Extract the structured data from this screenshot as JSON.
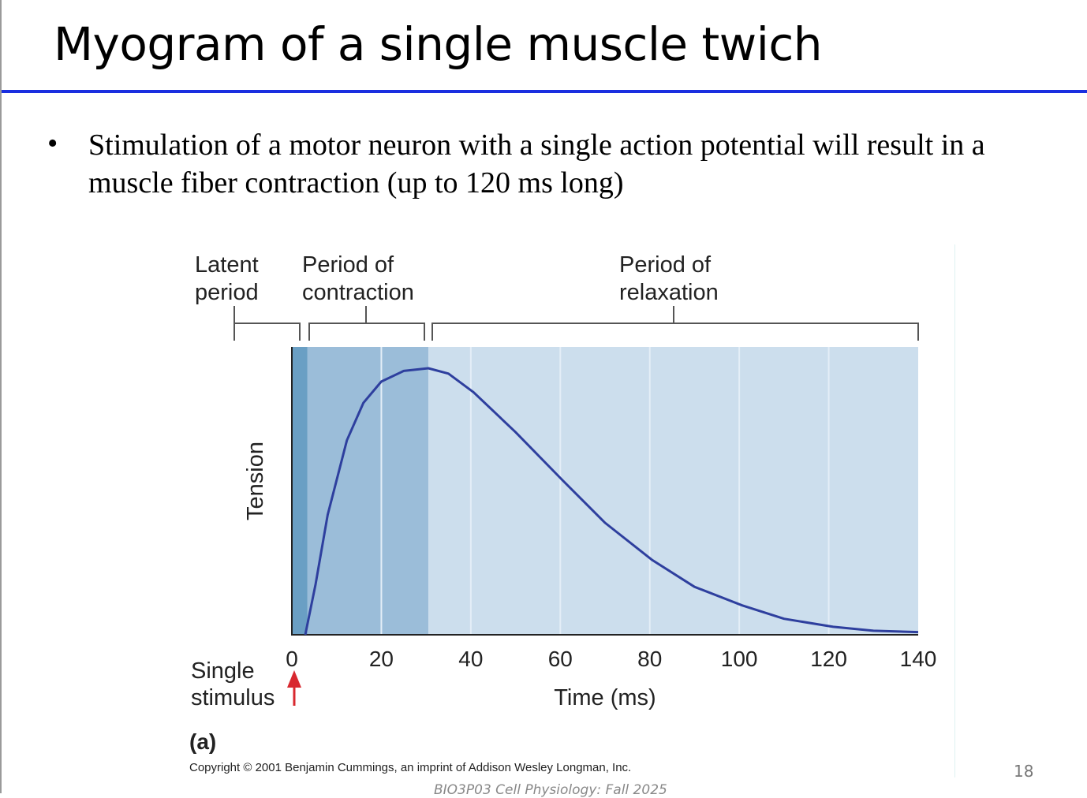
{
  "slide": {
    "title": "Myogram of a single muscle twich",
    "bullet": "Stimulation of a motor neuron with a single action potential will result in a muscle fiber contraction (up to 120 ms long)",
    "page_number": "18",
    "footer": "BIO3P03  Cell Physiology: Fall 2025"
  },
  "chart_data": {
    "type": "line",
    "title": "",
    "xlabel": "Time (ms)",
    "ylabel": "Tension",
    "xlim": [
      0,
      140
    ],
    "ylim": [
      0,
      1.08
    ],
    "x_ticks": [
      "0",
      "20",
      "40",
      "60",
      "80",
      "100",
      "120",
      "140"
    ],
    "phases": [
      {
        "name": "Latent period",
        "label1": "Latent",
        "label2": "period",
        "start": 0,
        "end": 3.5,
        "color": "#6a9fc4"
      },
      {
        "name": "Period of contraction",
        "label1": "Period of",
        "label2": "contraction",
        "start": 3.5,
        "end": 30.5,
        "color": "#9bbdd9"
      },
      {
        "name": "Period of relaxation",
        "label1": "Period of",
        "label2": "relaxation",
        "start": 30.5,
        "end": 140,
        "color": "#ccdeed"
      }
    ],
    "series": [
      {
        "name": "Tension",
        "color": "#2e3f9e",
        "x": [
          3,
          5.3,
          8,
          12.3,
          16,
          20,
          25,
          30.5,
          35,
          40.6,
          50,
          60.5,
          70,
          80.6,
          90,
          100.7,
          110,
          121,
          130,
          140
        ],
        "y": [
          0,
          0.19,
          0.45,
          0.73,
          0.87,
          0.95,
          0.99,
          1.0,
          0.98,
          0.91,
          0.76,
          0.58,
          0.42,
          0.28,
          0.18,
          0.11,
          0.06,
          0.03,
          0.015,
          0.01
        ]
      }
    ],
    "stimulus_label": [
      "Single",
      "stimulus"
    ],
    "panel_label": "(a)",
    "copyright": "Copyright © 2001 Benjamin Cummings, an imprint of Addison Wesley Longman, Inc."
  }
}
